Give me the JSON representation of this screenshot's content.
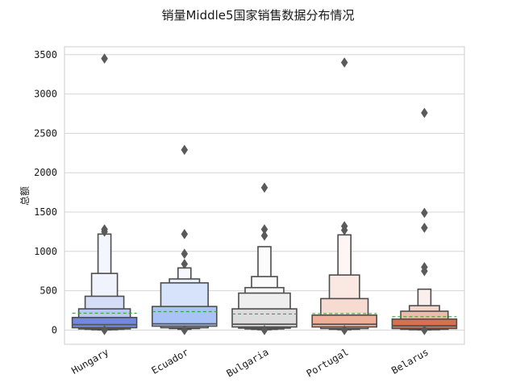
{
  "chart_data": {
    "type": "boxen",
    "title": "销量Middle5国家销售数据分布情况",
    "xlabel": "",
    "ylabel": "总额",
    "ylim": [
      -180,
      3600
    ],
    "yticks": [
      0,
      500,
      1000,
      1500,
      2000,
      2500,
      3000,
      3500
    ],
    "grid": "horizontal",
    "mean_line_color": "#3aa63a",
    "median_line_color": "#555555",
    "categories": [
      "Hungary",
      "Ecuador",
      "Bulgaria",
      "Portugal",
      "Belarus"
    ],
    "series": [
      {
        "category": "Hungary",
        "color": "#7389e0",
        "boxes": [
          {
            "low": 30,
            "high": 160
          },
          {
            "low": 15,
            "high": 270
          },
          {
            "low": 10,
            "high": 430
          },
          {
            "low": 5,
            "high": 720
          },
          {
            "low": 3,
            "high": 1220
          }
        ],
        "median": 70,
        "mean": 215,
        "outliers": [
          3450,
          1280,
          1250,
          0
        ]
      },
      {
        "category": "Ecuador",
        "color": "#a9c3f6",
        "boxes": [
          {
            "low": 50,
            "high": 300
          },
          {
            "low": 30,
            "high": 600
          },
          {
            "low": 20,
            "high": 650
          },
          {
            "low": 10,
            "high": 790
          }
        ],
        "median": 80,
        "mean": 235,
        "outliers": [
          2290,
          1220,
          970,
          840,
          0
        ]
      },
      {
        "category": "Bulgaria",
        "color": "#dcdcdc",
        "boxes": [
          {
            "low": 40,
            "high": 270
          },
          {
            "low": 25,
            "high": 470
          },
          {
            "low": 15,
            "high": 540
          },
          {
            "low": 10,
            "high": 680
          },
          {
            "low": 5,
            "high": 1060
          }
        ],
        "median": 75,
        "mean": 205,
        "outliers": [
          1810,
          1280,
          1200,
          0
        ]
      },
      {
        "category": "Portugal",
        "color": "#efb09a",
        "boxes": [
          {
            "low": 40,
            "high": 190
          },
          {
            "low": 20,
            "high": 400
          },
          {
            "low": 10,
            "high": 700
          },
          {
            "low": 5,
            "high": 1210
          }
        ],
        "median": 75,
        "mean": 210,
        "outliers": [
          3400,
          1320,
          1270,
          0
        ]
      },
      {
        "category": "Belarus",
        "color": "#d6704e",
        "boxes": [
          {
            "low": 20,
            "high": 140
          },
          {
            "low": 10,
            "high": 240
          },
          {
            "low": 5,
            "high": 310
          },
          {
            "low": 3,
            "high": 520
          }
        ],
        "median": 55,
        "mean": 170,
        "outliers": [
          2760,
          1490,
          1300,
          800,
          750,
          0
        ]
      }
    ]
  }
}
